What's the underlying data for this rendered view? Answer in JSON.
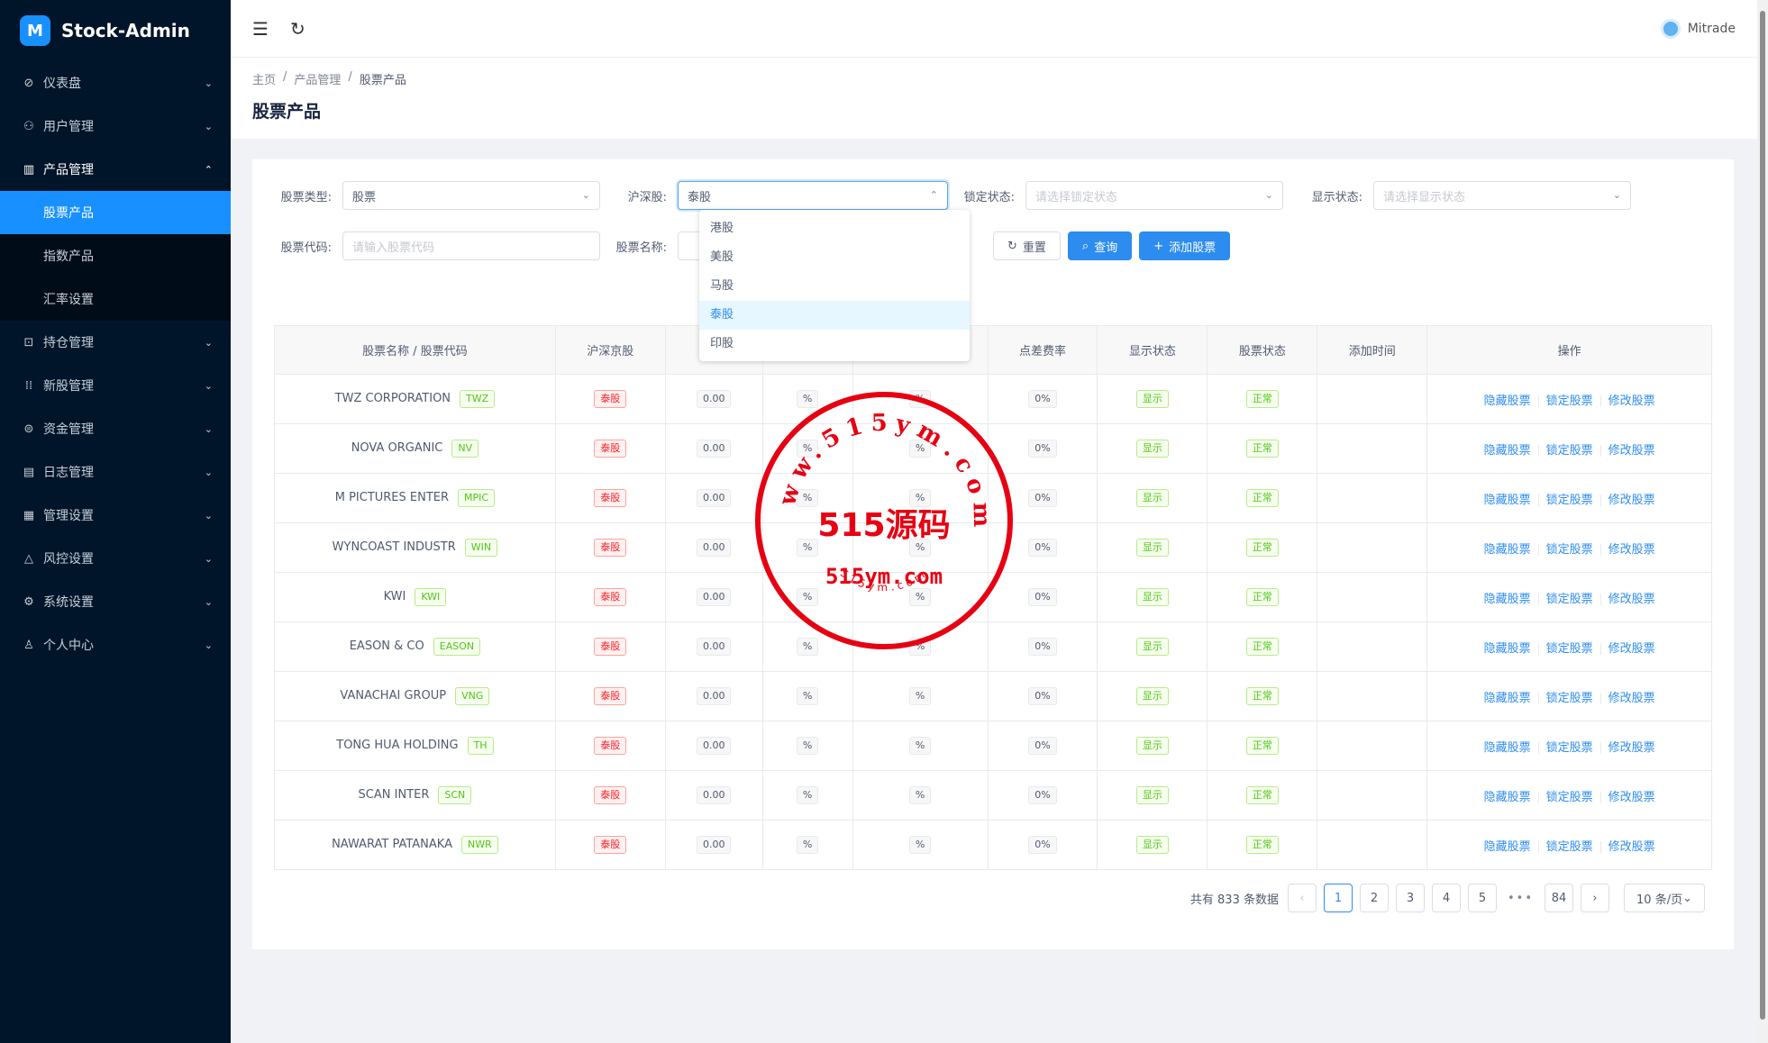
{
  "app": {
    "name": "Stock-Admin",
    "logo_letter": "M"
  },
  "sidebar": {
    "items": [
      {
        "label": "仪表盘",
        "icon": "dashboard-icon",
        "glyph": "⊘",
        "chev": "⌄"
      },
      {
        "label": "用户管理",
        "icon": "user-manage-icon",
        "glyph": "⚇",
        "chev": "⌄"
      },
      {
        "label": "产品管理",
        "icon": "chart-icon",
        "glyph": "▥",
        "chev": "⌃",
        "open": true
      },
      {
        "label": "持仓管理",
        "icon": "position-icon",
        "glyph": "⊡",
        "chev": "⌄"
      },
      {
        "label": "新股管理",
        "icon": "ipo-icon",
        "glyph": "⁞⁞",
        "chev": "⌄"
      },
      {
        "label": "资金管理",
        "icon": "money-icon",
        "glyph": "⊜",
        "chev": "⌄"
      },
      {
        "label": "日志管理",
        "icon": "log-icon",
        "glyph": "▤",
        "chev": "⌄"
      },
      {
        "label": "管理设置",
        "icon": "admin-settings-icon",
        "glyph": "▦",
        "chev": "⌄"
      },
      {
        "label": "风控设置",
        "icon": "warning-icon",
        "glyph": "△",
        "chev": "⌄"
      },
      {
        "label": "系统设置",
        "icon": "gear-icon",
        "glyph": "⚙",
        "chev": "⌄"
      },
      {
        "label": "个人中心",
        "icon": "person-icon",
        "glyph": "♙",
        "chev": "⌄"
      }
    ],
    "submenu": [
      "股票产品",
      "指数产品",
      "汇率设置"
    ]
  },
  "header": {
    "username": "Mitrade",
    "menu_glyph": "☰",
    "refresh_glyph": "↻"
  },
  "breadcrumb": [
    "主页",
    "产品管理",
    "股票产品"
  ],
  "breadcrumb_sep": "/",
  "page_title": "股票产品",
  "filters": {
    "stock_type": {
      "label": "股票类型:",
      "value": "股票"
    },
    "market": {
      "label": "沪深股:",
      "value": "泰股"
    },
    "lock": {
      "label": "锁定状态:",
      "placeholder": "请选择锁定状态"
    },
    "show": {
      "label": "显示状态:",
      "placeholder": "请选择显示状态"
    },
    "code": {
      "label": "股票代码:",
      "placeholder": "请输入股票代码"
    },
    "name": {
      "label": "股票名称:"
    }
  },
  "market_options": [
    "港股",
    "美股",
    "马股",
    "泰股",
    "印股"
  ],
  "market_selected": 3,
  "buttons": {
    "reset": "重置",
    "query": "查询",
    "add": "添加股票",
    "reset_glyph": "↻",
    "query_glyph": "⌕",
    "add_glyph": "+"
  },
  "table": {
    "headers": [
      "股票名称 / 股票代码",
      "沪深京股",
      "",
      "",
      "",
      "点差费率",
      "显示状态",
      "股票状态",
      "添加时间",
      "操作"
    ],
    "rows": [
      {
        "name": "TWZ CORPORATION",
        "code": "TWZ"
      },
      {
        "name": "NOVA ORGANIC",
        "code": "NV"
      },
      {
        "name": "M PICTURES ENTER",
        "code": "MPIC"
      },
      {
        "name": "WYNCOAST INDUSTR",
        "code": "WIN"
      },
      {
        "name": "KWI",
        "code": "KWI"
      },
      {
        "name": "EASON & CO",
        "code": "EASON"
      },
      {
        "name": "VANACHAI GROUP",
        "code": "VNG"
      },
      {
        "name": "TONG HUA HOLDING",
        "code": "TH"
      },
      {
        "name": "SCAN INTER",
        "code": "SCN"
      },
      {
        "name": "NAWARAT PATANAKA",
        "code": "NWR"
      }
    ],
    "row_defaults": {
      "market": "泰股",
      "val1": "0.00",
      "val2": "%",
      "val3": "%",
      "spread": "0%",
      "show": "显示",
      "status": "正常",
      "added": ""
    },
    "ops": [
      "隐藏股票",
      "锁定股票",
      "修改股票"
    ]
  },
  "pagination": {
    "total": "共有 833 条数据",
    "prev": "‹",
    "pages": [
      "1",
      "2",
      "3",
      "4",
      "5"
    ],
    "ellipsis": "•••",
    "last": "84",
    "next": "›",
    "page_size": "10 条/页"
  },
  "watermark": {
    "center": "515源码",
    "domain": "515ym.com",
    "ring_top": "www.515ym.com",
    "ring_bottom": "515ym.com",
    "color": "#e60012"
  }
}
